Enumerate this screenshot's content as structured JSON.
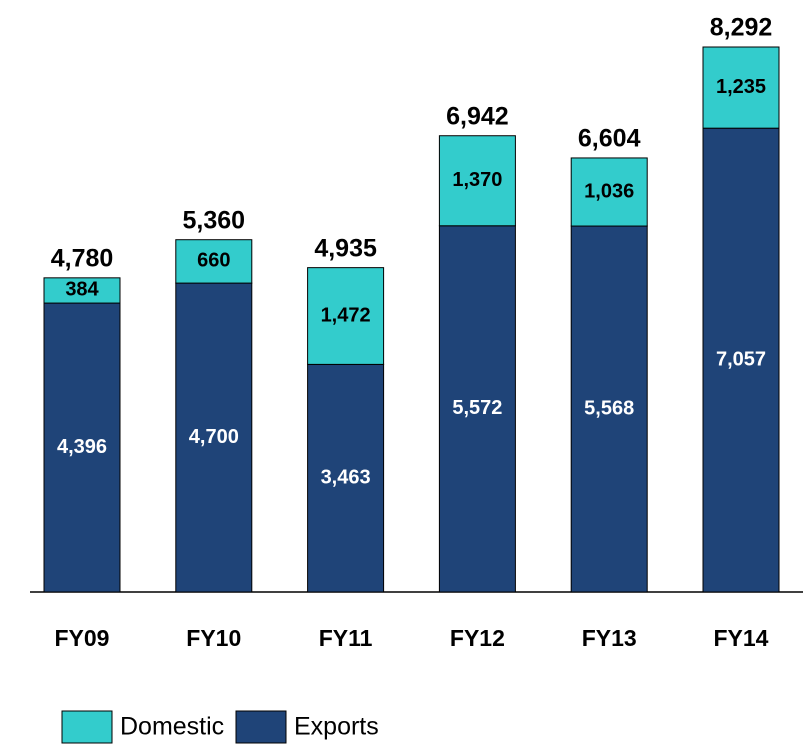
{
  "chart_data": {
    "type": "bar",
    "stacked": true,
    "categories": [
      "FY09",
      "FY10",
      "FY11",
      "FY12",
      "FY13",
      "FY14"
    ],
    "series": [
      {
        "name": "Exports",
        "color": "#1f4478",
        "values": [
          4396,
          4700,
          3463,
          5572,
          5568,
          7057
        ],
        "value_labels": [
          "4,396",
          "4,700",
          "3,463",
          "5,572",
          "5,568",
          "7,057"
        ]
      },
      {
        "name": "Domestic",
        "color": "#33cccc",
        "values": [
          384,
          660,
          1472,
          1370,
          1036,
          1235
        ],
        "value_labels": [
          "384",
          "660",
          "1,472",
          "1,370",
          "1,036",
          "1,235"
        ]
      }
    ],
    "totals": [
      "4,780",
      "5,360",
      "4,935",
      "6,942",
      "6,604",
      "8,292"
    ]
  }
}
